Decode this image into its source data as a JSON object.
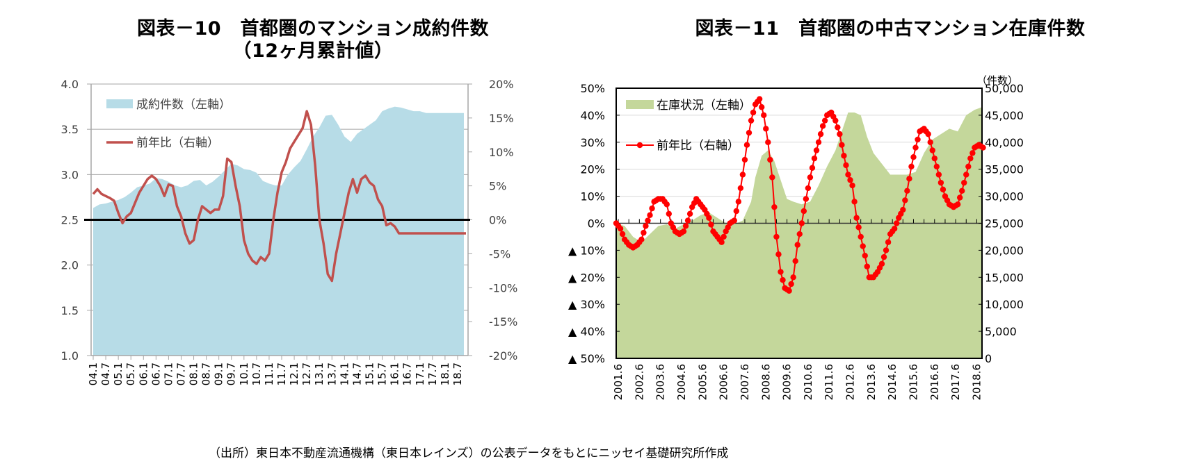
{
  "source_note": "（出所）東日本不動産流通機構（東日本レインズ）の公表データをもとにニッセイ基礎研究所作成",
  "chart_data": [
    {
      "id": "fig10",
      "type": "area+line",
      "title_line1": "図表－10　首都圏のマンション成約件数",
      "title_line2": "（12ヶ月累計値）",
      "xlabel": "",
      "ylabel_left": "",
      "ylabel_right": "",
      "left_axis": {
        "range": [
          1.0,
          4.0
        ],
        "ticks": [
          "1.0",
          "1.5",
          "2.0",
          "2.5",
          "3.0",
          "3.5",
          "4.0"
        ],
        "tick_values": [
          1.0,
          1.5,
          2.0,
          2.5,
          3.0,
          3.5,
          4.0
        ]
      },
      "right_axis": {
        "range": [
          -20,
          20
        ],
        "ticks": [
          "-20%",
          "-15%",
          "-10%",
          "-5%",
          "0%",
          "5%",
          "10%",
          "15%",
          "20%"
        ],
        "tick_values": [
          -20,
          -15,
          -10,
          -5,
          0,
          5,
          10,
          15,
          20
        ]
      },
      "x_tick_labels": [
        "04.1",
        "04.7",
        "05.1",
        "05.7",
        "06.1",
        "06.7",
        "07.1",
        "07.7",
        "08.1",
        "08.7",
        "09.1",
        "09.7",
        "10.1",
        "10.7",
        "11.1",
        "11.7",
        "12.1",
        "12.7",
        "13.1",
        "13.7",
        "14.1",
        "14.7",
        "15.1",
        "15.7",
        "16.1",
        "16.7",
        "17.1",
        "17.7",
        "18.1",
        "18.7"
      ],
      "grid": "horizontal",
      "legend": {
        "placement": "top-left",
        "entries": [
          {
            "label": "成約件数（左軸）",
            "type": "area",
            "color": "#b7dce7"
          },
          {
            "label": "前年比（右軸）",
            "type": "line",
            "color": "#c0504d"
          }
        ]
      },
      "zero_line": {
        "axis": "right",
        "value": 0,
        "color": "#000000"
      },
      "series": [
        {
          "name": "成約件数（左軸）",
          "axis": "left",
          "color": "#b7dce7",
          "x_months_from_2004_01": [
            0,
            3,
            6,
            9,
            12,
            15,
            18,
            21,
            24,
            27,
            30,
            33,
            36,
            39,
            42,
            45,
            48,
            51,
            54,
            57,
            60,
            63,
            66,
            69,
            72,
            75,
            78,
            81,
            84,
            87,
            90,
            93,
            96,
            99,
            102,
            105,
            108,
            111,
            114,
            117,
            120,
            123,
            126,
            129,
            132,
            135,
            138,
            141,
            144,
            147,
            150,
            153,
            156,
            159,
            162,
            165,
            168,
            171,
            174,
            177
          ],
          "values": [
            2.63,
            2.67,
            2.68,
            2.7,
            2.72,
            2.75,
            2.8,
            2.86,
            2.88,
            2.9,
            2.96,
            2.95,
            2.92,
            2.88,
            2.86,
            2.88,
            2.93,
            2.94,
            2.88,
            2.92,
            2.98,
            3.05,
            3.12,
            3.1,
            3.06,
            3.05,
            3.02,
            2.93,
            2.9,
            2.88,
            2.88,
            3.0,
            3.08,
            3.15,
            3.28,
            3.42,
            3.52,
            3.65,
            3.66,
            3.55,
            3.42,
            3.36,
            3.45,
            3.5,
            3.55,
            3.6,
            3.7,
            3.73,
            3.75,
            3.74,
            3.72,
            3.7,
            3.7,
            3.68,
            3.68,
            3.68,
            3.68,
            3.68,
            3.68,
            3.68
          ]
        },
        {
          "name": "前年比（右軸）",
          "axis": "right",
          "color": "#c0504d",
          "x_months_from_2004_01": [
            0,
            2,
            4,
            6,
            8,
            10,
            12,
            14,
            16,
            18,
            20,
            22,
            24,
            26,
            28,
            30,
            32,
            34,
            36,
            38,
            40,
            42,
            44,
            46,
            48,
            50,
            52,
            54,
            56,
            58,
            60,
            62,
            64,
            66,
            68,
            70,
            72,
            74,
            76,
            78,
            80,
            82,
            84,
            86,
            88,
            90,
            92,
            94,
            96,
            98,
            100,
            102,
            104,
            106,
            108,
            110,
            112,
            114,
            116,
            118,
            120,
            122,
            124,
            126,
            128,
            130,
            132,
            134,
            136,
            138,
            140,
            142,
            144,
            146,
            148,
            150,
            152,
            154,
            156,
            158,
            160,
            162,
            164,
            166,
            168,
            170,
            172,
            174,
            176,
            178
          ],
          "values": [
            3.8,
            4.5,
            3.8,
            3.5,
            3.2,
            2.8,
            1.0,
            -0.5,
            0.5,
            1.0,
            2.5,
            4.0,
            5.0,
            6.0,
            6.5,
            6.0,
            5.0,
            3.5,
            5.2,
            5.0,
            2.0,
            0.5,
            -2.0,
            -3.5,
            -3.0,
            0.0,
            2.0,
            1.5,
            1.0,
            1.5,
            1.5,
            3.5,
            9.0,
            8.5,
            5.0,
            2.0,
            -3.0,
            -5.0,
            -6.0,
            -6.5,
            -5.5,
            -6.0,
            -5.0,
            0.0,
            4.0,
            7.0,
            8.5,
            10.5,
            11.5,
            12.5,
            13.5,
            16.0,
            14.0,
            8.0,
            0.0,
            -3.5,
            -8.0,
            -9.0,
            -5.0,
            -2.0,
            1.0,
            4.0,
            6.0,
            4.0,
            6.0,
            6.5,
            5.5,
            5.0,
            3.0,
            2.0,
            -0.8,
            -0.5,
            -1.0,
            -2.0,
            -2.0,
            -2.0,
            -2.0,
            -2.0,
            -2.0,
            -2.0,
            -2.0,
            -2.0,
            -2.0,
            -2.0,
            -2.0,
            -2.0,
            -2.0,
            -2.0,
            -2.0,
            -2.0
          ]
        }
      ]
    },
    {
      "id": "fig11",
      "type": "area+line",
      "title": "図表－11　首都圏の中古マンション在庫件数",
      "unit_label": "（件数）",
      "left_axis": {
        "range": [
          -50,
          50
        ],
        "ticks": [
          "▲ 50%",
          "▲ 40%",
          "▲ 30%",
          "▲ 20%",
          "▲ 10%",
          "0%",
          "10%",
          "20%",
          "30%",
          "40%",
          "50%"
        ],
        "tick_values": [
          -50,
          -40,
          -30,
          -20,
          -10,
          0,
          10,
          20,
          30,
          40,
          50
        ]
      },
      "right_axis": {
        "range": [
          0,
          50000
        ],
        "ticks": [
          "0",
          "5,000",
          "10,000",
          "15,000",
          "20,000",
          "25,000",
          "30,000",
          "35,000",
          "40,000",
          "45,000",
          "50,000"
        ],
        "tick_values": [
          0,
          5000,
          10000,
          15000,
          20000,
          25000,
          30000,
          35000,
          40000,
          45000,
          50000
        ]
      },
      "x_tick_labels": [
        "2001.6",
        "2002.6",
        "2003.6",
        "2004.6",
        "2005.6",
        "2006.6",
        "2007.6",
        "2008.6",
        "2009.6",
        "2010.6",
        "2011.6",
        "2012.6",
        "2013.6",
        "2014.6",
        "2015.6",
        "2016.6",
        "2017.6",
        "2018.6"
      ],
      "grid": "horizontal",
      "legend": {
        "placement": "top-left",
        "entries": [
          {
            "label": "在庫状況（左軸）",
            "type": "area",
            "color": "#c4d79b"
          },
          {
            "label": "前年比（右軸）",
            "type": "line-marker",
            "color": "#ff0000"
          }
        ]
      },
      "series": [
        {
          "name": "在庫状況（左軸）",
          "axis": "right",
          "color": "#c4d79b",
          "x_years": [
            2001.4,
            2001.8,
            2002.2,
            2002.6,
            2003.0,
            2003.4,
            2003.8,
            2004.2,
            2004.6,
            2005.0,
            2005.4,
            2005.8,
            2006.2,
            2006.6,
            2007.0,
            2007.4,
            2007.8,
            2008.0,
            2008.3,
            2008.6,
            2008.9,
            2009.2,
            2009.5,
            2009.8,
            2010.2,
            2010.6,
            2011.0,
            2011.4,
            2011.8,
            2012.1,
            2012.4,
            2012.7,
            2013.0,
            2013.3,
            2013.6,
            2014.0,
            2014.4,
            2014.8,
            2015.2,
            2015.6,
            2016.0,
            2016.4,
            2016.8,
            2017.2,
            2017.6,
            2018.0,
            2018.4,
            2018.75
          ],
          "values": [
            25000,
            24500,
            22500,
            21500,
            23000,
            24500,
            24800,
            24000,
            24800,
            25500,
            26500,
            27000,
            26000,
            25000,
            24800,
            25500,
            29000,
            33500,
            37500,
            38500,
            36500,
            33000,
            29500,
            29000,
            28500,
            29000,
            32000,
            35500,
            38500,
            42000,
            45500,
            45500,
            45000,
            41000,
            38000,
            36000,
            34000,
            34000,
            34000,
            34500,
            38000,
            40500,
            41500,
            42500,
            42000,
            45000,
            46000,
            46500
          ]
        },
        {
          "name": "前年比（右軸）",
          "axis": "left",
          "color": "#ff0000",
          "x_years": [
            2001.4,
            2001.6,
            2001.8,
            2002.0,
            2002.2,
            2002.4,
            2002.6,
            2002.8,
            2003.0,
            2003.2,
            2003.4,
            2003.6,
            2003.8,
            2004.0,
            2004.2,
            2004.4,
            2004.6,
            2004.8,
            2005.0,
            2005.2,
            2005.4,
            2005.6,
            2005.8,
            2006.0,
            2006.2,
            2006.4,
            2006.6,
            2006.8,
            2007.0,
            2007.2,
            2007.4,
            2007.6,
            2007.8,
            2008.0,
            2008.2,
            2008.4,
            2008.6,
            2008.8,
            2009.0,
            2009.2,
            2009.4,
            2009.6,
            2009.8,
            2010.0,
            2010.2,
            2010.4,
            2010.6,
            2010.8,
            2011.0,
            2011.2,
            2011.4,
            2011.6,
            2011.8,
            2012.0,
            2012.2,
            2012.4,
            2012.6,
            2012.8,
            2013.0,
            2013.2,
            2013.4,
            2013.6,
            2013.8,
            2014.0,
            2014.2,
            2014.4,
            2014.6,
            2014.8,
            2015.0,
            2015.2,
            2015.4,
            2015.6,
            2015.8,
            2016.0,
            2016.2,
            2016.4,
            2016.6,
            2016.8,
            2017.0,
            2017.2,
            2017.4,
            2017.6,
            2017.8,
            2018.0,
            2018.2,
            2018.4,
            2018.6,
            2018.8
          ],
          "values": [
            0,
            -2,
            -6,
            -8,
            -9,
            -8,
            -6,
            -1,
            3,
            8,
            9,
            9,
            7,
            0,
            -3,
            -4,
            -3,
            1,
            6,
            9,
            7,
            5,
            2,
            -3,
            -5,
            -7,
            -3,
            0,
            1,
            8,
            18,
            29,
            38,
            44,
            46,
            40,
            30,
            17,
            -5,
            -18,
            -24,
            -25,
            -20,
            -8,
            0,
            9,
            17,
            24,
            30,
            36,
            40,
            41,
            38,
            33,
            25,
            18,
            14,
            2,
            -5,
            -12,
            -20,
            -20,
            -18,
            -15,
            -10,
            -4,
            -2,
            2,
            5,
            12,
            21,
            28,
            34,
            35,
            33,
            27,
            21,
            15,
            10,
            7,
            6,
            7,
            12,
            18,
            24,
            28,
            29,
            28
          ]
        }
      ]
    }
  ]
}
